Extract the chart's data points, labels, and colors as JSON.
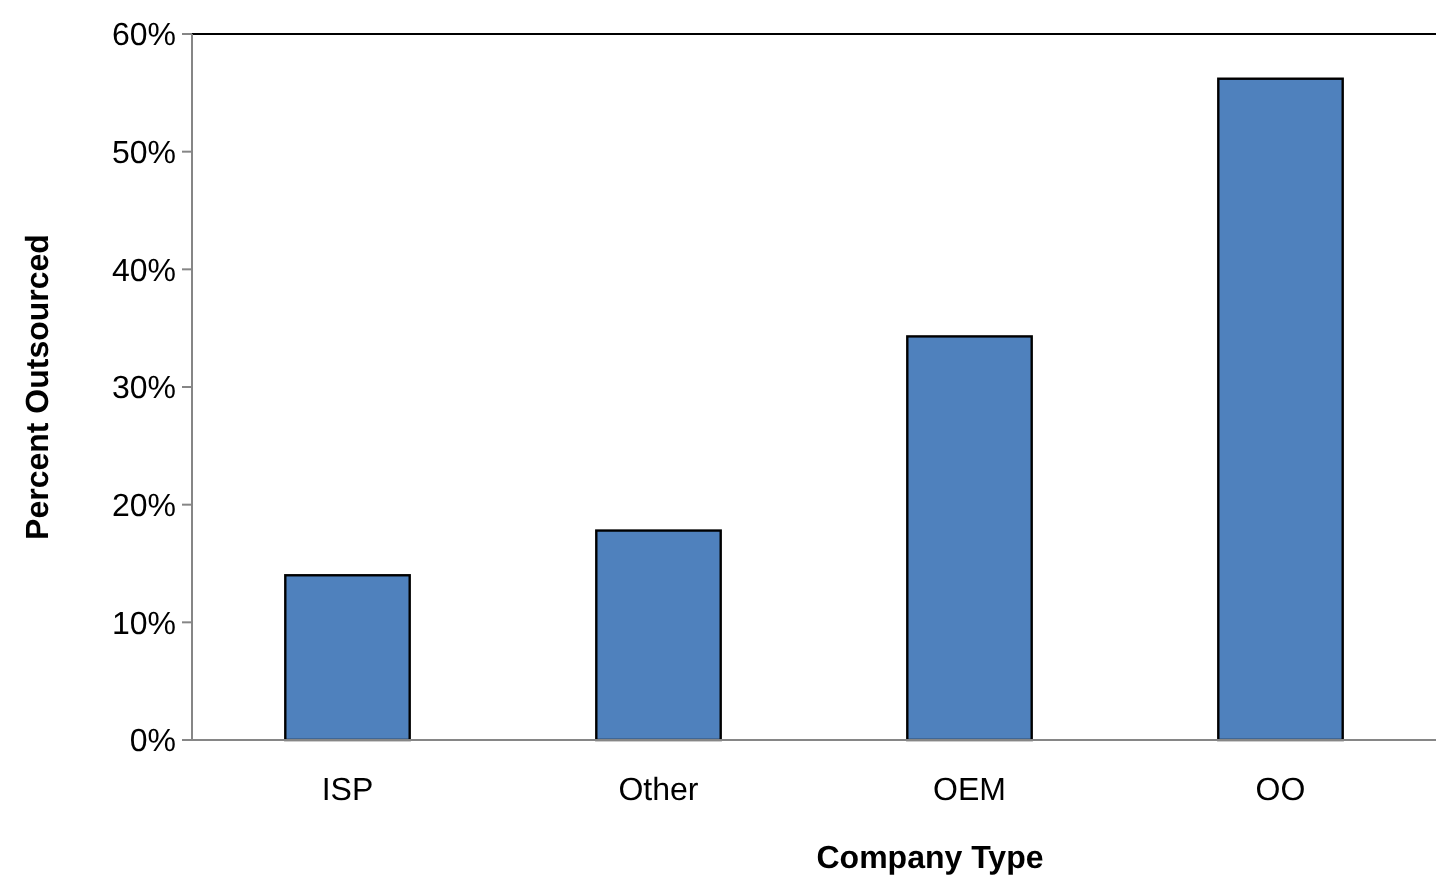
{
  "chart_data": {
    "type": "bar",
    "xlabel": "Company Type",
    "ylabel": "Percent Outsourced",
    "categories": [
      "ISP",
      "Other",
      "OEM",
      "OO"
    ],
    "values": [
      14.0,
      17.8,
      34.3,
      56.2
    ],
    "color": "#4f81bd",
    "ylim": [
      0,
      60
    ],
    "yticks": [
      {
        "value": 0,
        "label": "0%"
      },
      {
        "value": 10,
        "label": "10%"
      },
      {
        "value": 20,
        "label": "20%"
      },
      {
        "value": 30,
        "label": "30%"
      },
      {
        "value": 40,
        "label": "40%"
      },
      {
        "value": 50,
        "label": "50%"
      },
      {
        "value": 60,
        "label": "60%"
      }
    ],
    "grid": false
  }
}
